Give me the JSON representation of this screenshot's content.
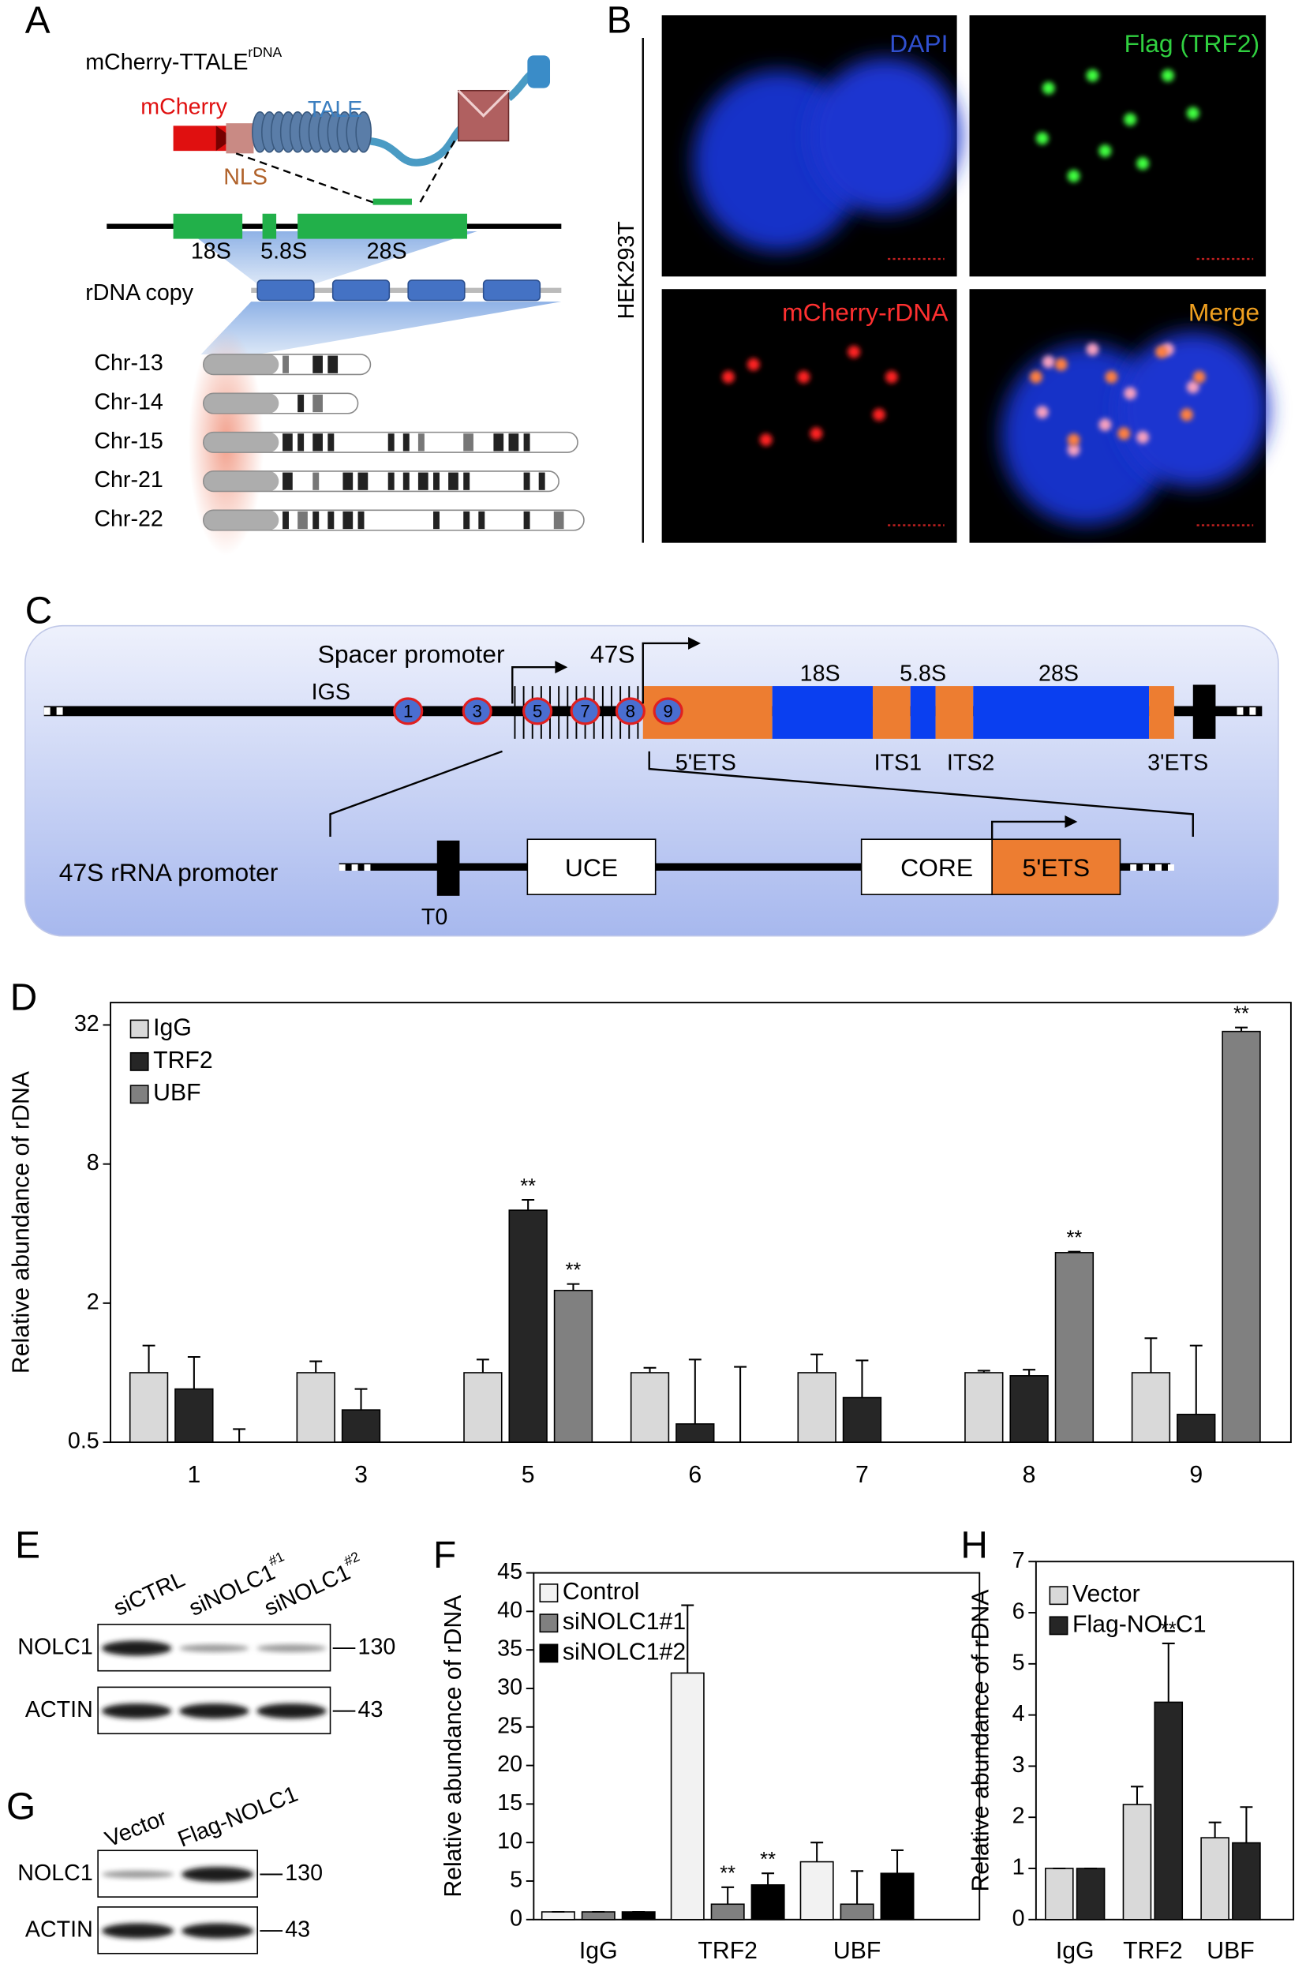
{
  "panel_a": {
    "label": "A",
    "construct": "mCherry-TTALE",
    "construct_sup": "rDNA",
    "mcherry": "mCherry",
    "tale": "TALE",
    "nls": "NLS",
    "genes": [
      "18S",
      "5.8S",
      "28S"
    ],
    "rdna_copy": "rDNA copy",
    "chromosomes": [
      "Chr-13",
      "Chr-14",
      "Chr-15",
      "Chr-21",
      "Chr-22"
    ]
  },
  "panel_b": {
    "label": "B",
    "cell_line": "HEK293T",
    "channels": [
      "DAPI",
      "Flag (TRF2)",
      "mCherry-rDNA",
      "Merge"
    ]
  },
  "panel_c": {
    "label": "C",
    "spacer_promoter": "Spacer promoter",
    "p47s": "47S",
    "igs": "IGS",
    "sites": [
      "1",
      "3",
      "5",
      "7",
      "8",
      "9"
    ],
    "genes": [
      "18S",
      "5.8S",
      "28S"
    ],
    "regions": [
      "5'ETS",
      "ITS1",
      "ITS2",
      "3'ETS"
    ],
    "promoter_title": "47S rRNA promoter",
    "uce": "UCE",
    "core": "CORE",
    "ets": "5'ETS",
    "t0": "T0"
  },
  "panel_e": {
    "label": "E",
    "lanes": [
      {
        "text": "siCTRL",
        "sup": null
      },
      {
        "text": "siNOLC1",
        "sup": "#1"
      },
      {
        "text": "siNOLC1",
        "sup": "#2"
      }
    ],
    "rows": [
      "NOLC1",
      "ACTIN"
    ],
    "markers": [
      "130",
      "43"
    ]
  },
  "panel_g": {
    "label": "G",
    "lanes": [
      "Vector",
      "Flag-NOLC1"
    ],
    "rows": [
      "NOLC1",
      "ACTIN"
    ],
    "markers": [
      "130",
      "43"
    ]
  },
  "chart_data": [
    {
      "type": "bar",
      "label": "D",
      "ylabel": "Relative abundance of rDNA",
      "log_scale": true,
      "log_base": 2,
      "categories": [
        "1",
        "3",
        "5",
        "6",
        "7",
        "8",
        "9"
      ],
      "ylim": [
        0.5,
        40
      ],
      "yticks": [
        0.5,
        2,
        8,
        32
      ],
      "legend": "upper left",
      "series": [
        {
          "name": "IgG",
          "color": "#d9d9d9",
          "values": [
            1.0,
            1.0,
            1.0,
            1.0,
            1.0,
            1.0,
            1.0
          ],
          "errors": [
            0.31,
            0.12,
            0.14,
            0.05,
            0.2,
            0.02,
            0.41
          ],
          "significance": [
            null,
            null,
            null,
            null,
            null,
            null,
            null
          ]
        },
        {
          "name": "TRF2",
          "color": "#262626",
          "values": [
            0.85,
            0.69,
            5.05,
            0.6,
            0.78,
            0.97,
            0.66
          ],
          "errors": [
            0.32,
            0.16,
            0.55,
            0.54,
            0.35,
            0.06,
            0.65
          ],
          "significance": [
            null,
            null,
            "**",
            null,
            null,
            null,
            null
          ]
        },
        {
          "name": "UBF",
          "color": "#808080",
          "values": [
            0.5,
            null,
            2.27,
            0.5,
            null,
            3.31,
            30.0
          ],
          "errors": [
            0.07,
            null,
            0.15,
            0.56,
            null,
            0.03,
            1.2
          ],
          "significance": [
            null,
            null,
            "**",
            null,
            null,
            "**",
            "**"
          ]
        }
      ]
    },
    {
      "type": "bar",
      "label": "F",
      "ylabel": "Relative abundance of rDNA",
      "log_scale": false,
      "categories": [
        "IgG",
        "TRF2",
        "UBF"
      ],
      "ylim": [
        0,
        45
      ],
      "yticks": [
        0,
        5,
        10,
        15,
        20,
        25,
        30,
        35,
        40,
        45
      ],
      "legend": "upper left",
      "series": [
        {
          "name": "Control",
          "color": "#f2f2f2",
          "values": [
            1,
            32,
            7.5
          ],
          "errors": [
            0,
            8.8,
            2.5
          ],
          "significance": [
            null,
            null,
            null
          ]
        },
        {
          "name": "siNOLC1#1",
          "color": "#808080",
          "values": [
            1,
            2,
            2
          ],
          "errors": [
            0,
            2.2,
            4.3
          ],
          "significance": [
            null,
            "**",
            null
          ]
        },
        {
          "name": "siNOLC1#2",
          "color": "#000000",
          "values": [
            1,
            4.5,
            6
          ],
          "errors": [
            0,
            1.5,
            3
          ],
          "significance": [
            null,
            "**",
            null
          ]
        }
      ]
    },
    {
      "type": "bar",
      "label": "H",
      "ylabel": "Relative abundance of rDNA",
      "log_scale": false,
      "categories": [
        "IgG",
        "TRF2",
        "UBF"
      ],
      "ylim": [
        0,
        7
      ],
      "yticks": [
        0,
        1,
        2,
        3,
        4,
        5,
        6,
        7
      ],
      "legend": "upper left",
      "series": [
        {
          "name": "Vector",
          "color": "#d9d9d9",
          "values": [
            1,
            2.25,
            1.6
          ],
          "errors": [
            0,
            0.35,
            0.3
          ],
          "significance": [
            null,
            null,
            null
          ]
        },
        {
          "name": "Flag-NOLC1",
          "color": "#262626",
          "values": [
            1,
            4.25,
            1.5
          ],
          "errors": [
            0,
            1.15,
            0.7
          ],
          "significance": [
            null,
            "**",
            null
          ]
        }
      ]
    }
  ]
}
